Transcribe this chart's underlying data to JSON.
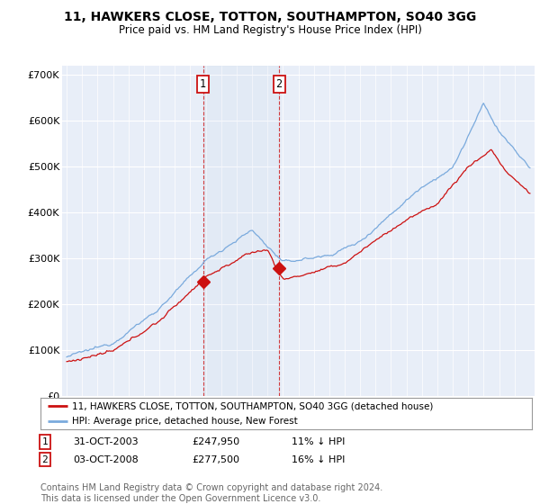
{
  "title": "11, HAWKERS CLOSE, TOTTON, SOUTHAMPTON, SO40 3GG",
  "subtitle": "Price paid vs. HM Land Registry's House Price Index (HPI)",
  "title_fontsize": 10,
  "subtitle_fontsize": 8.5,
  "ylabel_ticks": [
    "£0",
    "£100K",
    "£200K",
    "£300K",
    "£400K",
    "£500K",
    "£600K",
    "£700K"
  ],
  "ytick_values": [
    0,
    100000,
    200000,
    300000,
    400000,
    500000,
    600000,
    700000
  ],
  "ylim": [
    0,
    720000
  ],
  "background_color": "#ffffff",
  "plot_bg_color": "#e8eef8",
  "grid_color": "#ffffff",
  "hpi_color": "#7aaadd",
  "price_color": "#cc1111",
  "marker1_date": 2003.83,
  "marker1_price": 247950,
  "marker2_date": 2008.75,
  "marker2_price": 277500,
  "legend_label_price": "11, HAWKERS CLOSE, TOTTON, SOUTHAMPTON, SO40 3GG (detached house)",
  "legend_label_hpi": "HPI: Average price, detached house, New Forest",
  "footnote": "Contains HM Land Registry data © Crown copyright and database right 2024.\nThis data is licensed under the Open Government Licence v3.0.",
  "footnote_fontsize": 7
}
